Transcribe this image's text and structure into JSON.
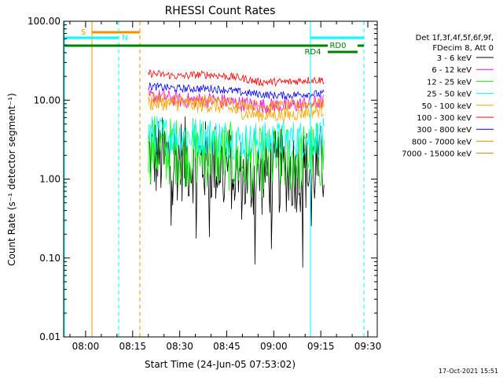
{
  "chart_data": {
    "type": "line",
    "title": "RHESSI Count Rates",
    "xlabel": "Start Time (24-Jun-05 07:53:02)",
    "ylabel": "Count Rate (s⁻¹ detector segment⁻¹)",
    "y_scale": "log",
    "ylim": [
      0.01,
      100
    ],
    "xlim": [
      "07:53",
      "09:33"
    ],
    "x_ticks": [
      "08:00",
      "08:15",
      "08:30",
      "08:45",
      "09:00",
      "09:15",
      "09:30"
    ],
    "y_ticks": [
      "0.01",
      "0.10",
      "1.00",
      "10.00",
      "100.00"
    ],
    "grid": false,
    "legend_position": "top-right",
    "legend_header": [
      "Det 1f,3f,4f,5f,6f,9f,",
      "FDecim 8, Att 0"
    ],
    "series": [
      {
        "name": "3 - 6 keV",
        "color": "#000000",
        "x": [
          "08:20",
          "08:25",
          "08:30",
          "08:35",
          "08:40",
          "08:45",
          "08:50",
          "08:55",
          "09:00",
          "09:05",
          "09:10",
          "09:16"
        ],
        "values": [
          2.0,
          1.8,
          1.8,
          1.7,
          1.6,
          1.5,
          1.0,
          1.1,
          1.2,
          1.3,
          1.3,
          1.5
        ]
      },
      {
        "name": "6 - 12 keV",
        "color": "#ff00ff",
        "x": [
          "08:20",
          "08:25",
          "08:30",
          "08:35",
          "08:40",
          "08:45",
          "08:50",
          "08:55",
          "09:00",
          "09:05",
          "09:10",
          "09:16"
        ],
        "values": [
          11,
          11,
          10,
          10,
          10,
          9.5,
          9,
          8.5,
          8.5,
          8.5,
          9,
          9.5
        ]
      },
      {
        "name": "12 - 25 keV",
        "color": "#00ff00",
        "x": [
          "08:20",
          "08:25",
          "08:30",
          "08:35",
          "08:40",
          "08:45",
          "08:50",
          "08:55",
          "09:00",
          "09:05",
          "09:10",
          "09:16"
        ],
        "values": [
          2.5,
          2.3,
          2.2,
          2.2,
          2.1,
          2.0,
          1.6,
          1.6,
          1.7,
          1.8,
          1.9,
          2.0
        ]
      },
      {
        "name": "25 - 50 keV",
        "color": "#00ffff",
        "x": [
          "08:20",
          "08:25",
          "08:30",
          "08:35",
          "08:40",
          "08:45",
          "08:50",
          "08:55",
          "09:00",
          "09:05",
          "09:10",
          "09:16"
        ],
        "values": [
          3.8,
          3.6,
          3.6,
          3.5,
          3.5,
          3.3,
          3.0,
          3.0,
          3.1,
          3.2,
          3.2,
          3.4
        ]
      },
      {
        "name": "50 - 100 keV",
        "color": "#ffa500",
        "x": [
          "08:20",
          "08:25",
          "08:30",
          "08:35",
          "08:40",
          "08:45",
          "08:50",
          "08:55",
          "09:00",
          "09:05",
          "09:10",
          "09:16"
        ],
        "values": [
          9,
          9,
          9,
          8.5,
          8.5,
          8,
          7,
          6.5,
          6.5,
          6.5,
          7,
          7.5
        ]
      },
      {
        "name": "100 - 300 keV",
        "color": "#ff0000",
        "x": [
          "08:20",
          "08:25",
          "08:30",
          "08:35",
          "08:40",
          "08:45",
          "08:50",
          "08:55",
          "09:00",
          "09:05",
          "09:10",
          "09:16"
        ],
        "values": [
          22,
          21,
          20,
          21,
          21,
          20,
          19,
          17,
          17,
          17,
          18,
          18
        ]
      },
      {
        "name": "300 - 800 keV",
        "color": "#0000ff",
        "x": [
          "08:20",
          "08:25",
          "08:30",
          "08:35",
          "08:40",
          "08:45",
          "08:50",
          "08:55",
          "09:00",
          "09:05",
          "09:10",
          "09:16"
        ],
        "values": [
          15,
          14.5,
          14,
          14,
          14,
          13.5,
          12.5,
          12,
          11.5,
          11.5,
          12,
          12
        ]
      },
      {
        "name": "800 - 7000 keV",
        "color": "#ff8c00",
        "x": [
          "08:20",
          "08:25",
          "08:30",
          "08:35",
          "08:40",
          "08:45",
          "08:50",
          "08:55",
          "09:00",
          "09:05",
          "09:10",
          "09:16"
        ],
        "values": [
          11,
          10.5,
          10,
          10,
          10,
          9.5,
          9,
          8.5,
          8.5,
          8.5,
          9,
          9
        ]
      },
      {
        "name": "7000 - 15000 keV",
        "color": "#b8860b",
        "x": [],
        "values": []
      }
    ],
    "annotations": [
      {
        "text": "S",
        "color": "#ff8c00"
      },
      {
        "text": "N",
        "color": "#00ffff"
      },
      {
        "text": "RD0",
        "color": "#008000"
      },
      {
        "text": "RD4",
        "color": "#008000"
      }
    ],
    "footer_timestamp": "17-Oct-2021 15:51"
  }
}
